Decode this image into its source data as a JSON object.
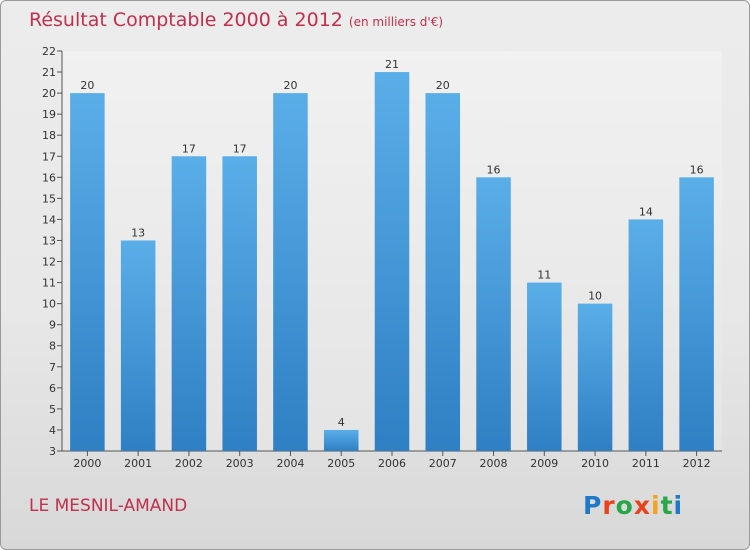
{
  "header": {
    "title": "Résultat Comptable 2000 à 2012",
    "subtitle": "(en milliers d'€)"
  },
  "footer": {
    "place": "LE MESNIL-AMAND",
    "brand_letters": [
      "P",
      "r",
      "o",
      "x",
      "i",
      "t",
      "i"
    ]
  },
  "colors": {
    "title": "#c0304e",
    "bar_top": "#5aaee8",
    "bar_bottom": "#2f7fc4",
    "brand_blue": "#1f78c8",
    "brand_orange": "#e8431c",
    "brand_green": "#27a64a",
    "brand_yellow": "#f3a21b"
  },
  "chart_data": {
    "type": "bar",
    "title": "Résultat Comptable 2000 à 2012",
    "subtitle": "(en milliers d'€)",
    "categories": [
      "2000",
      "2001",
      "2002",
      "2003",
      "2004",
      "2005",
      "2006",
      "2007",
      "2008",
      "2009",
      "2010",
      "2011",
      "2012"
    ],
    "values": [
      20,
      13,
      17,
      17,
      20,
      4,
      21,
      20,
      16,
      11,
      10,
      14,
      16
    ],
    "ylim": [
      3,
      22
    ],
    "yticks": [
      3,
      4,
      5,
      6,
      7,
      8,
      9,
      10,
      11,
      12,
      13,
      14,
      15,
      16,
      17,
      18,
      19,
      20,
      21,
      22
    ],
    "grid": false,
    "xlabel": "",
    "ylabel": ""
  }
}
